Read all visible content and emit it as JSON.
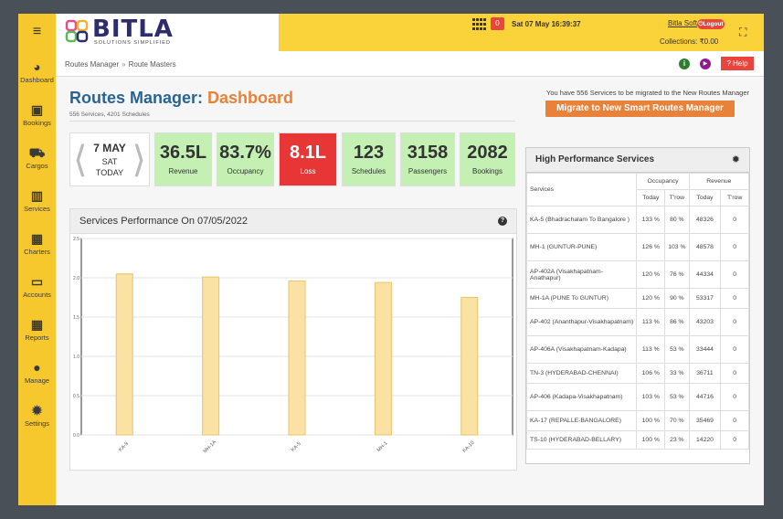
{
  "sidebar": {
    "items": [
      {
        "icon": "dashboard-icon",
        "glyph": "◕",
        "label": "Dashboard"
      },
      {
        "icon": "bus-icon",
        "glyph": "▣",
        "label": "Bookings"
      },
      {
        "icon": "truck-icon",
        "glyph": "⛟",
        "label": "Cargos"
      },
      {
        "icon": "bar-chart-icon",
        "glyph": "▥",
        "label": "Services"
      },
      {
        "icon": "grid-icon",
        "glyph": "▦",
        "label": "Charters"
      },
      {
        "icon": "money-icon",
        "glyph": "▭",
        "label": "Accounts"
      },
      {
        "icon": "table-icon",
        "glyph": "▦",
        "label": "Reports"
      },
      {
        "icon": "user-icon",
        "glyph": "●",
        "label": "Manage"
      },
      {
        "icon": "gear-icon",
        "glyph": "✹",
        "label": "Settings"
      }
    ]
  },
  "header": {
    "logo_text": "BITLA",
    "logo_sub": "SOLUTIONS SIMPLIFIED",
    "apps_badge": "0",
    "datetime": "Sat 07 May 16:39:37",
    "user": "Bitla Soft",
    "logout": "Logout",
    "collections": "Collections: ₹0.00"
  },
  "breadcrumb": {
    "items": [
      "Routes Manager",
      "Route Masters"
    ],
    "separator": "»",
    "help_label": "? Help"
  },
  "page": {
    "title_main": "Routes Manager:",
    "title_sub": " Dashboard",
    "meta": "556 Services, 4201 Schedules",
    "migrate_note": "You have 556 Services to be migrated to the New Routes Manager",
    "migrate_button": "Migrate to New Smart Routes Manager"
  },
  "date_box": {
    "day": "7 MAY",
    "dow": "SAT",
    "today": "TODAY"
  },
  "kpis": [
    {
      "value": "36.5L",
      "label": "Revenue",
      "status": "good"
    },
    {
      "value": "83.7%",
      "label": "Occupancy",
      "status": "good"
    },
    {
      "value": "8.1L",
      "label": "Loss",
      "status": "bad"
    },
    {
      "value": "123",
      "label": "Schedules",
      "status": "good"
    },
    {
      "value": "3158",
      "label": "Passengers",
      "status": "good"
    },
    {
      "value": "2082",
      "label": "Bookings",
      "status": "good"
    }
  ],
  "chart_panel": {
    "title": "Services Performance On 07/05/2022"
  },
  "chart_data": {
    "type": "bar",
    "categories": [
      "KA-9",
      "MH-1A",
      "KA-5",
      "MH-1",
      "KA-10"
    ],
    "values": [
      2.05,
      2.01,
      1.96,
      1.94,
      1.75
    ],
    "ylim": [
      0,
      2.5
    ],
    "yticks": [
      "0.0",
      "0.5",
      "1.0",
      "1.5",
      "2.0",
      "2.5"
    ],
    "grid": true,
    "bar_color": "#f9e2a4",
    "bar_edge": "#eac46a"
  },
  "hp_panel": {
    "title": "High Performance Services",
    "headers": {
      "services": "Services",
      "occupancy": "Occupancy",
      "revenue": "Revenue",
      "today": "Today",
      "trow": "T'row"
    },
    "rows": [
      {
        "service": "KA-5 (Bhadrachalam To Bangalore )",
        "occ_today": "133 %",
        "occ_trow": "80 %",
        "rev_today": "48326",
        "rev_trow": "0"
      },
      {
        "service": "MH-1 (GUNTUR-PUNE)",
        "occ_today": "126 %",
        "occ_trow": "103 %",
        "rev_today": "48578",
        "rev_trow": "0"
      },
      {
        "service": "AP-402A (Visakhapatnam-Anathapur)",
        "occ_today": "120 %",
        "occ_trow": "76 %",
        "rev_today": "44334",
        "rev_trow": "0"
      },
      {
        "service": "MH-1A (PUNE To GUNTUR)",
        "occ_today": "120 %",
        "occ_trow": "90 %",
        "rev_today": "53317",
        "rev_trow": "0"
      },
      {
        "service": "AP-402 (Ananthapur-Visakhapatnam)",
        "occ_today": "113 %",
        "occ_trow": "86 %",
        "rev_today": "43203",
        "rev_trow": "0"
      },
      {
        "service": "AP-406A (Visakhapatnam-Kadapa)",
        "occ_today": "113 %",
        "occ_trow": "53 %",
        "rev_today": "33444",
        "rev_trow": "0"
      },
      {
        "service": "TN-3 (HYDERABAD-CHENNAI)",
        "occ_today": "106 %",
        "occ_trow": "33 %",
        "rev_today": "36711",
        "rev_trow": "0"
      },
      {
        "service": "AP-406 (Kadapa-Visakhapatnam)",
        "occ_today": "103 %",
        "occ_trow": "53 %",
        "rev_today": "44716",
        "rev_trow": "0"
      },
      {
        "service": "KA-17 (REPALLE-BANGALORE)",
        "occ_today": "100 %",
        "occ_trow": "70 %",
        "rev_today": "35469",
        "rev_trow": "0"
      },
      {
        "service": "TS-10 (HYDERABAD-BELLARY)",
        "occ_today": "100 %",
        "occ_trow": "23 %",
        "rev_today": "14220",
        "rev_trow": "0"
      }
    ]
  }
}
